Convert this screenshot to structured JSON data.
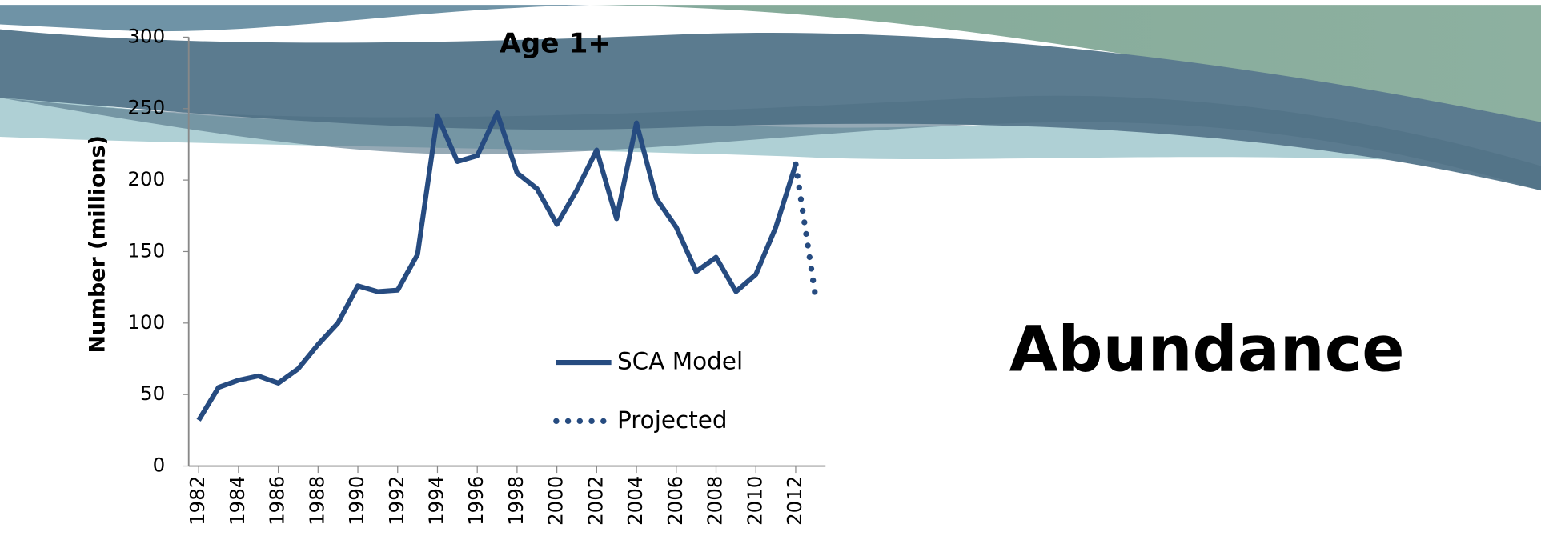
{
  "slide": {
    "title": "Abundance"
  },
  "chart_data": {
    "type": "line",
    "title": "Age 1+",
    "y_label": "Number (millions)",
    "xlim": [
      1981.5,
      2013.5
    ],
    "xticks": [
      1982,
      1984,
      1986,
      1988,
      1990,
      1992,
      1994,
      1996,
      1998,
      2000,
      2002,
      2004,
      2006,
      2008,
      2010,
      2012
    ],
    "ylim": [
      0,
      300
    ],
    "yticks": [
      0,
      50,
      100,
      150,
      200,
      250,
      300
    ],
    "grid": false,
    "series": [
      {
        "name": "SCA Model",
        "color": "#264b80",
        "style": "solid",
        "x": [
          1982,
          1983,
          1984,
          1985,
          1986,
          1987,
          1988,
          1989,
          1990,
          1991,
          1992,
          1993,
          1994,
          1995,
          1996,
          1997,
          1998,
          1999,
          2000,
          2001,
          2002,
          2003,
          2004,
          2005,
          2006,
          2007,
          2008,
          2009,
          2010,
          2011,
          2012
        ],
        "values": [
          32,
          55,
          60,
          63,
          58,
          68,
          85,
          100,
          126,
          122,
          123,
          148,
          245,
          213,
          217,
          247,
          205,
          194,
          169,
          193,
          221,
          173,
          240,
          187,
          167,
          136,
          146,
          122,
          134,
          167,
          211
        ]
      },
      {
        "name": "Projected",
        "color": "#264b80",
        "style": "dotted",
        "x": [
          2012,
          2013
        ],
        "values": [
          211,
          118
        ]
      }
    ]
  }
}
